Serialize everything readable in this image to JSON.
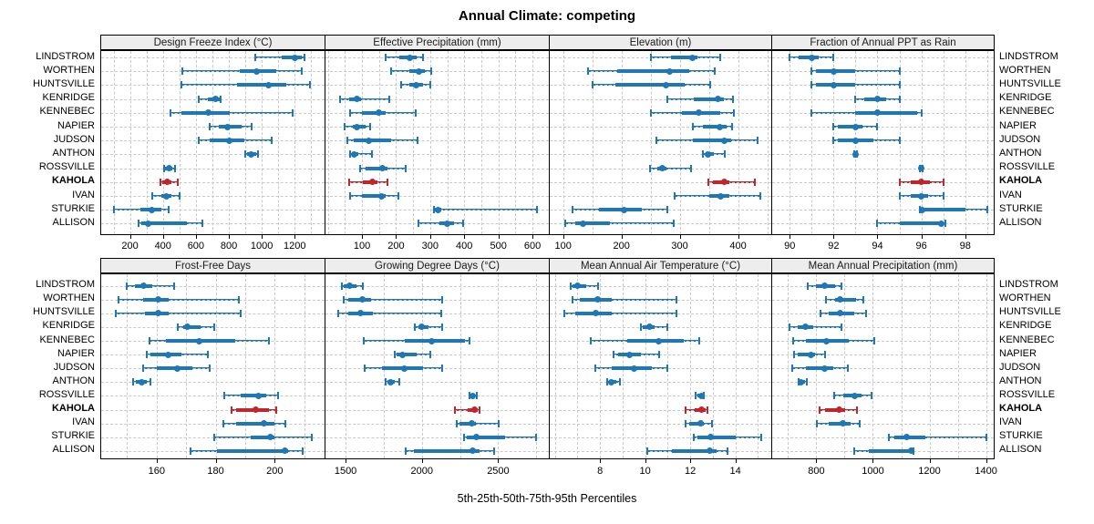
{
  "title": "Annual Climate: competing",
  "caption": "5th-25th-50th-75th-95th Percentiles",
  "colors": {
    "series_blue": "#1f77b4",
    "series_red": "#c0272d",
    "grid": "#c9c9c9",
    "strip_bg": "#ededed",
    "panel_border": "#000000"
  },
  "chart_data": {
    "type": "dotplot-interval",
    "orientation": "horizontal",
    "percentiles": [
      "5th",
      "25th",
      "50th",
      "75th",
      "95th"
    ],
    "stations": [
      "LINDSTROM",
      "WORTHEN",
      "HUNTSVILLE",
      "KENRIDGE",
      "KENNEBEC",
      "NAPIER",
      "JUDSON",
      "ANTHON",
      "ROSSVILLE",
      "KAHOLA",
      "IVAN",
      "STURKIE",
      "ALLISON"
    ],
    "highlight_station": "KAHOLA",
    "legend": "none",
    "grid_style": "dashed minor+major vertical gridlines, dashed horizontal row guides",
    "panels": [
      {
        "title": "Design Freeze Index (°C)",
        "band": "top",
        "col": 0,
        "xlim": [
          25,
          1381
        ],
        "ticks": [
          200,
          400,
          600,
          800,
          1000,
          1200
        ],
        "grid_step": 100,
        "values": {
          "LINDSTROM": [
            960,
            1120,
            1200,
            1240,
            1260
          ],
          "WORTHEN": [
            520,
            865,
            970,
            1085,
            1240
          ],
          "HUNTSVILLE": [
            510,
            850,
            1040,
            1150,
            1290
          ],
          "KENRIDGE": [
            615,
            675,
            720,
            742,
            750
          ],
          "KENNEBEC": [
            445,
            510,
            675,
            805,
            1190
          ],
          "NAPIER": [
            685,
            740,
            790,
            875,
            940
          ],
          "JUDSON": [
            615,
            685,
            800,
            895,
            1060
          ],
          "ANTHON": [
            900,
            910,
            935,
            965,
            975
          ],
          "ROSSVILLE": [
            405,
            415,
            435,
            455,
            475
          ],
          "KAHOLA": [
            385,
            397,
            425,
            450,
            490
          ],
          "IVAN": [
            337,
            392,
            423,
            452,
            500
          ],
          "STURKIE": [
            105,
            265,
            333,
            392,
            434
          ],
          "ALLISON": [
            250,
            270,
            310,
            545,
            640
          ]
        }
      },
      {
        "title": "Effective Precipitation (mm)",
        "band": "top",
        "col": 1,
        "xlim": [
          -7,
          648
        ],
        "ticks": [
          100,
          200,
          300,
          400,
          500,
          600
        ],
        "grid_step": 50,
        "values": {
          "LINDSTROM": [
            170,
            210,
            240,
            260,
            280
          ],
          "WORTHEN": [
            185,
            238,
            266,
            284,
            304
          ],
          "HUNTSVILLE": [
            215,
            240,
            260,
            280,
            300
          ],
          "KENRIDGE": [
            35,
            63,
            85,
            98,
            180
          ],
          "KENNEBEC": [
            65,
            100,
            150,
            170,
            258
          ],
          "NAPIER": [
            50,
            72,
            85,
            110,
            125
          ],
          "JUDSON": [
            58,
            75,
            120,
            185,
            264
          ],
          "ANTHON": [
            65,
            70,
            76,
            90,
            130
          ],
          "ROSSVILLE": [
            95,
            110,
            160,
            175,
            228
          ],
          "KAHOLA": [
            63,
            103,
            130,
            145,
            175
          ],
          "IVAN": [
            65,
            100,
            158,
            170,
            206
          ],
          "STURKIE": [
            310,
            313,
            323,
            332,
            614
          ],
          "ALLISON": [
            265,
            328,
            350,
            370,
            396
          ]
        }
      },
      {
        "title": "Elevation (m)",
        "band": "top",
        "col": 2,
        "xlim": [
          77,
          457
        ],
        "ticks": [
          100,
          200,
          300,
          400
        ],
        "grid_step": 50,
        "values": {
          "LINDSTROM": [
            250,
            285,
            322,
            330,
            370
          ],
          "WORTHEN": [
            143,
            192,
            282,
            317,
            360
          ],
          "HUNTSVILLE": [
            150,
            190,
            277,
            308,
            353
          ],
          "KENRIDGE": [
            279,
            324,
            365,
            376,
            391
          ],
          "KENNEBEC": [
            250,
            303,
            332,
            370,
            393
          ],
          "NAPIER": [
            323,
            340,
            368,
            380,
            390
          ],
          "JUDSON": [
            260,
            323,
            377,
            388,
            434
          ],
          "ANTHON": [
            339,
            344,
            349,
            358,
            377
          ],
          "ROSSVILLE": [
            249,
            261,
            270,
            277,
            319
          ],
          "KAHOLA": [
            349,
            357,
            377,
            385,
            429
          ],
          "IVAN": [
            292,
            350,
            370,
            385,
            439
          ],
          "STURKIE": [
            116,
            161,
            204,
            235,
            279
          ],
          "ALLISON": [
            103,
            121,
            134,
            180,
            289
          ]
        }
      },
      {
        "title": "Fraction of Annual PPT as Rain",
        "band": "top",
        "col": 3,
        "xlim": [
          89.2,
          99.3
        ],
        "ticks": [
          90,
          92,
          94,
          96,
          98
        ],
        "grid_step": 1,
        "values": {
          "LINDSTROM": [
            90,
            90.4,
            91,
            91.3,
            92
          ],
          "WORTHEN": [
            91,
            91.2,
            92,
            93,
            95
          ],
          "HUNTSVILLE": [
            91,
            91.2,
            92,
            93,
            95
          ],
          "KENRIDGE": [
            93,
            93.4,
            94,
            94.4,
            95
          ],
          "KENNEBEC": [
            91,
            93,
            94,
            95.8,
            96
          ],
          "NAPIER": [
            92,
            92.2,
            93,
            93.3,
            94
          ],
          "JUDSON": [
            92,
            92.2,
            93,
            93.8,
            95
          ],
          "ANTHON": [
            92.92,
            92.96,
            93,
            93.04,
            93.08
          ],
          "ROSSVILLE": [
            95.95,
            95.98,
            96,
            96.02,
            96.05
          ],
          "KAHOLA": [
            95,
            95.5,
            96,
            96.4,
            97
          ],
          "IVAN": [
            95,
            95.5,
            96,
            96.3,
            97
          ],
          "STURKIE": [
            95.95,
            96,
            96.05,
            98,
            99
          ],
          "ALLISON": [
            94,
            95,
            96.9,
            97,
            97.1
          ]
        }
      },
      {
        "title": "Frost-Free Days",
        "band": "bottom",
        "col": 0,
        "xlim": [
          141.2,
          216.9
        ],
        "ticks": [
          160,
          180,
          200
        ],
        "grid_step": 10,
        "values": {
          "LINDSTROM": [
            150,
            152.5,
            155.5,
            158.5,
            166
          ],
          "WORTHEN": [
            147,
            155.5,
            160.5,
            164,
            188
          ],
          "HUNTSVILLE": [
            146,
            156,
            160.5,
            164,
            188.5
          ],
          "KENRIDGE": [
            167,
            169,
            170.5,
            175,
            179.5
          ],
          "KENNEBEC": [
            157.5,
            163,
            174.5,
            186.5,
            198
          ],
          "NAPIER": [
            156.5,
            158,
            164,
            168.5,
            177.5
          ],
          "JUDSON": [
            155.5,
            160,
            167,
            172,
            178
          ],
          "ANTHON": [
            152,
            153,
            155,
            156.5,
            158
          ],
          "ROSSVILLE": [
            183,
            188.5,
            194.5,
            197,
            201
          ],
          "KAHOLA": [
            185.5,
            187,
            193.5,
            198,
            200.5
          ],
          "IVAN": [
            182.5,
            187,
            196.5,
            200,
            203.5
          ],
          "STURKIE": [
            179.5,
            192,
            198.5,
            200,
            212.5
          ],
          "ALLISON": [
            171.5,
            180.5,
            203.5,
            204.5,
            209.5
          ]
        }
      },
      {
        "title": "Growing Degree Days (°C)",
        "band": "bottom",
        "col": 1,
        "xlim": [
          1368,
          2832
        ],
        "ticks": [
          1500,
          2000,
          2500
        ],
        "grid_step": 250,
        "values": {
          "LINDSTROM": [
            1475,
            1490,
            1525,
            1570,
            1615
          ],
          "WORTHEN": [
            1490,
            1520,
            1610,
            1665,
            2130
          ],
          "HUNTSVILLE": [
            1450,
            1515,
            1600,
            1680,
            2125
          ],
          "KENRIDGE": [
            1955,
            1975,
            2000,
            2045,
            2130
          ],
          "KENNEBEC": [
            1620,
            1890,
            2065,
            2280,
            2315
          ],
          "NAPIER": [
            1825,
            1835,
            1870,
            1965,
            2055
          ],
          "JUDSON": [
            1625,
            1740,
            1885,
            2010,
            2130
          ],
          "ANTHON": [
            1765,
            1775,
            1795,
            1825,
            1855
          ],
          "ROSSVILLE": [
            2310,
            2315,
            2335,
            2350,
            2360
          ],
          "KAHOLA": [
            2215,
            2300,
            2345,
            2365,
            2375
          ],
          "IVAN": [
            2230,
            2245,
            2325,
            2355,
            2505
          ],
          "STURKIE": [
            2275,
            2295,
            2355,
            2545,
            2750
          ],
          "ALLISON": [
            1895,
            1945,
            2335,
            2375,
            2475
          ]
        }
      },
      {
        "title": "Mean Annual Air Temperature (°C)",
        "band": "bottom",
        "col": 2,
        "xlim": [
          5.77,
          15.59
        ],
        "ticks": [
          8,
          10,
          12,
          14
        ],
        "grid_step": 1,
        "values": {
          "LINDSTROM": [
            6.7,
            6.8,
            7.0,
            7.4,
            7.9
          ],
          "WORTHEN": [
            6.8,
            7.1,
            7.9,
            8.5,
            11.4
          ],
          "HUNTSVILLE": [
            6.4,
            6.9,
            7.8,
            8.5,
            11.4
          ],
          "KENRIDGE": [
            9.8,
            9.9,
            10.2,
            10.4,
            11.0
          ],
          "KENNEBEC": [
            7.6,
            9.2,
            10.6,
            11.7,
            12.4
          ],
          "NAPIER": [
            8.6,
            8.8,
            9.3,
            9.8,
            10.6
          ],
          "JUDSON": [
            7.8,
            8.5,
            9.5,
            10.3,
            11.0
          ],
          "ANTHON": [
            8.3,
            8.4,
            8.5,
            8.7,
            8.9
          ],
          "ROSSVILLE": [
            12.25,
            12.3,
            12.5,
            12.55,
            12.6
          ],
          "KAHOLA": [
            11.8,
            12.2,
            12.5,
            12.7,
            12.75
          ],
          "IVAN": [
            11.8,
            11.95,
            12.45,
            12.6,
            12.95
          ],
          "STURKIE": [
            12.15,
            12.3,
            12.9,
            14.0,
            15.15
          ],
          "ALLISON": [
            10.1,
            11.2,
            12.85,
            13.15,
            13.65
          ]
        }
      },
      {
        "title": "Mean Annual Precipitation (mm)",
        "band": "bottom",
        "col": 3,
        "xlim": [
          644,
          1427
        ],
        "ticks": [
          800,
          1000,
          1200,
          1400
        ],
        "grid_step": 100,
        "values": {
          "LINDSTROM": [
            770,
            800,
            830,
            865,
            890
          ],
          "WORTHEN": [
            835,
            865,
            885,
            940,
            965
          ],
          "HUNTSVILLE": [
            815,
            845,
            885,
            935,
            975
          ],
          "KENRIDGE": [
            705,
            733,
            760,
            790,
            890
          ],
          "KENNEBEC": [
            718,
            763,
            835,
            914,
            1005
          ],
          "NAPIER": [
            720,
            735,
            780,
            795,
            830
          ],
          "JUDSON": [
            715,
            763,
            828,
            860,
            910
          ],
          "ANTHON": [
            736,
            740,
            747,
            760,
            768
          ],
          "ROSSVILLE": [
            864,
            896,
            935,
            960,
            995
          ],
          "KAHOLA": [
            810,
            830,
            880,
            903,
            944
          ],
          "IVAN": [
            803,
            843,
            895,
            920,
            952
          ],
          "STURKIE": [
            1055,
            1077,
            1120,
            1185,
            1400
          ],
          "ALLISON": [
            935,
            985,
            1135,
            1140,
            1142
          ]
        }
      }
    ]
  }
}
